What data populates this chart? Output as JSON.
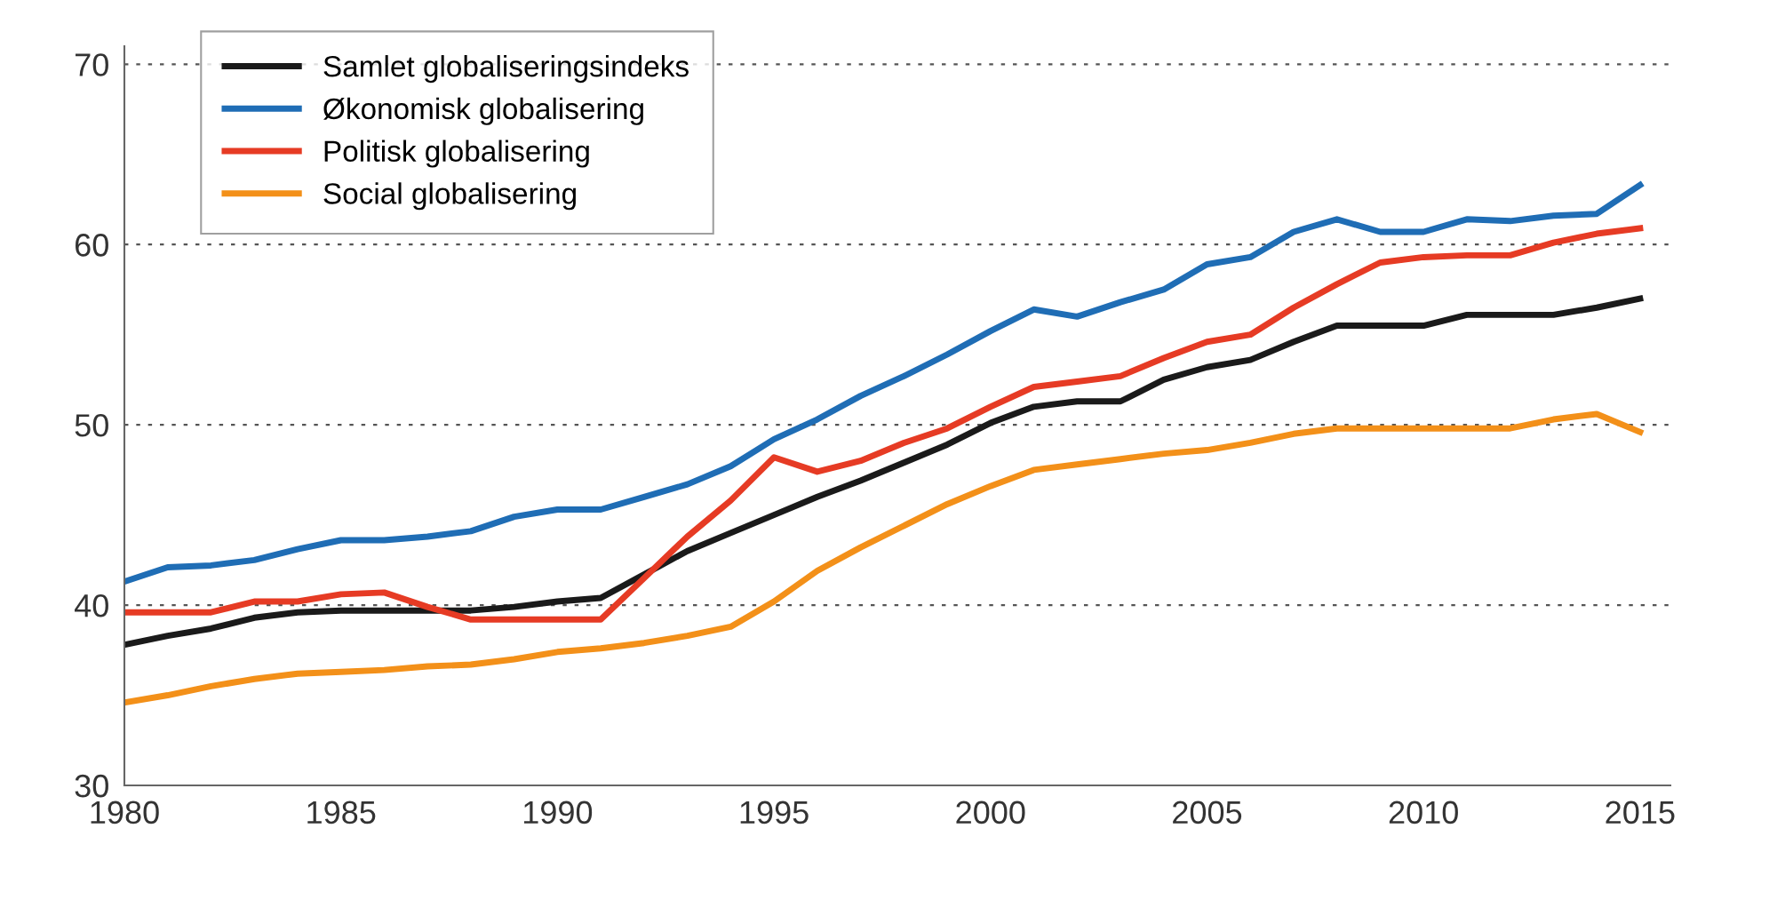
{
  "chart_data": {
    "type": "line",
    "x": [
      1980,
      1981,
      1982,
      1983,
      1984,
      1985,
      1986,
      1987,
      1988,
      1989,
      1990,
      1991,
      1992,
      1993,
      1994,
      1995,
      1996,
      1997,
      1998,
      1999,
      2000,
      2001,
      2002,
      2003,
      2004,
      2005,
      2006,
      2007,
      2008,
      2009,
      2010,
      2011,
      2012,
      2013,
      2014,
      2015
    ],
    "series": [
      {
        "name": "Samlet globaliseringsindeks",
        "color": "#1a1a1a",
        "values": [
          37.8,
          38.3,
          38.7,
          39.3,
          39.6,
          39.7,
          39.7,
          39.7,
          39.7,
          39.9,
          40.2,
          40.4,
          41.7,
          43.0,
          44.0,
          45.0,
          46.0,
          46.9,
          47.9,
          48.9,
          50.1,
          51.0,
          51.3,
          51.3,
          52.5,
          53.2,
          53.6,
          54.6,
          55.5,
          55.5,
          55.5,
          56.1,
          56.1,
          56.1,
          56.5,
          57.0
        ]
      },
      {
        "name": "Økonomisk globalisering",
        "color": "#1f6db5",
        "values": [
          41.3,
          42.1,
          42.2,
          42.5,
          43.1,
          43.6,
          43.6,
          43.8,
          44.1,
          44.9,
          45.3,
          45.3,
          46.0,
          46.7,
          47.7,
          49.2,
          50.3,
          51.6,
          52.7,
          53.9,
          55.2,
          56.4,
          56.0,
          56.8,
          57.5,
          58.9,
          59.3,
          60.7,
          61.4,
          60.7,
          60.7,
          61.4,
          61.3,
          61.6,
          61.7,
          63.3
        ]
      },
      {
        "name": "Politisk globalisering",
        "color": "#e63b24",
        "values": [
          39.6,
          39.6,
          39.6,
          40.2,
          40.2,
          40.6,
          40.7,
          39.9,
          39.2,
          39.2,
          39.2,
          39.2,
          41.5,
          43.8,
          45.8,
          48.2,
          47.4,
          48.0,
          49.0,
          49.8,
          51.0,
          52.1,
          52.4,
          52.7,
          53.7,
          54.6,
          55.0,
          56.5,
          57.8,
          59.0,
          59.3,
          59.4,
          59.4,
          60.1,
          60.6,
          60.9
        ]
      },
      {
        "name": "Social globalisering",
        "color": "#f39019",
        "values": [
          34.6,
          35.0,
          35.5,
          35.9,
          36.2,
          36.3,
          36.4,
          36.6,
          36.7,
          37.0,
          37.4,
          37.6,
          37.9,
          38.3,
          38.8,
          40.2,
          41.9,
          43.2,
          44.4,
          45.6,
          46.6,
          47.5,
          47.8,
          48.1,
          48.4,
          48.6,
          49.0,
          49.5,
          49.8,
          49.8,
          49.8,
          49.8,
          49.8,
          50.3,
          50.6,
          49.6
        ]
      }
    ],
    "xlim": [
      1980,
      2015.7
    ],
    "xticks": [
      1980,
      1985,
      1990,
      1995,
      2000,
      2005,
      2010,
      2015
    ],
    "ylim": [
      30,
      71
    ],
    "yticks": [
      30,
      40,
      50,
      60,
      70
    ],
    "grid": "y",
    "legend": "top left",
    "marker": "none",
    "line_style": "solid"
  }
}
